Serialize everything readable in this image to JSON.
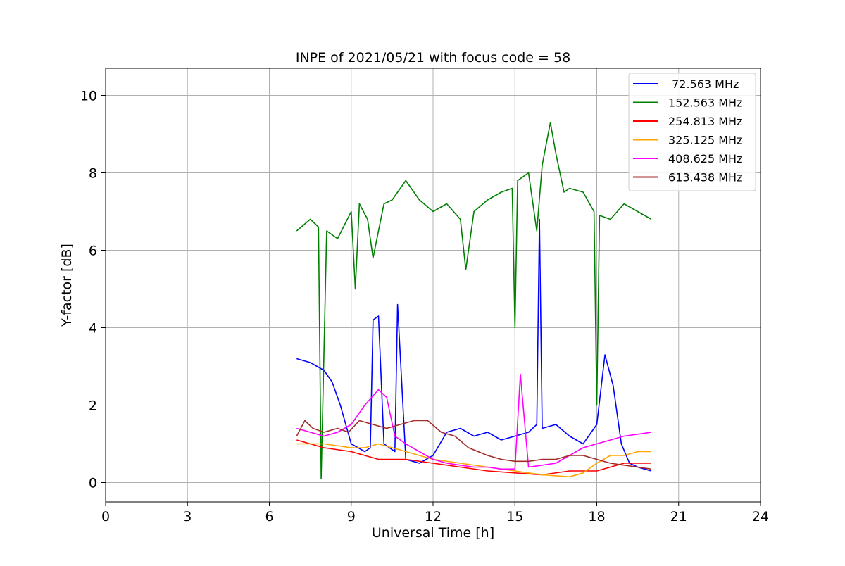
{
  "chart_data": {
    "type": "line",
    "title": "INPE of 2021/05/21 with focus code = 58",
    "xlabel": "Universal Time [h]",
    "ylabel": "Y-factor [dB]",
    "xlim": [
      0,
      24
    ],
    "ylim": [
      -0.5,
      10.7
    ],
    "xticks": [
      0,
      3,
      6,
      9,
      12,
      15,
      18,
      21,
      24
    ],
    "yticks": [
      0,
      2,
      4,
      6,
      8,
      10
    ],
    "grid": true,
    "legend_position": "top-right",
    "series": [
      {
        "name": " 72.563 MHz",
        "color": "#0000ff",
        "x": [
          7.0,
          7.5,
          8.0,
          8.3,
          8.6,
          9.0,
          9.5,
          9.7,
          9.8,
          10.0,
          10.2,
          10.6,
          10.7,
          11.0,
          11.5,
          12.0,
          12.5,
          13.0,
          13.5,
          14.0,
          14.5,
          15.0,
          15.5,
          15.8,
          15.9,
          16.0,
          16.5,
          17.0,
          17.5,
          18.0,
          18.3,
          18.6,
          18.9,
          19.2,
          19.5,
          20.0
        ],
        "y": [
          3.2,
          3.1,
          2.9,
          2.6,
          2.0,
          1.0,
          0.8,
          0.9,
          4.2,
          4.3,
          1.0,
          0.8,
          4.6,
          0.6,
          0.5,
          0.7,
          1.3,
          1.4,
          1.2,
          1.3,
          1.1,
          1.2,
          1.3,
          1.5,
          6.8,
          1.4,
          1.5,
          1.2,
          1.0,
          1.5,
          3.3,
          2.5,
          1.0,
          0.5,
          0.4,
          0.3
        ]
      },
      {
        "name": "152.563 MHz",
        "color": "#008000",
        "x": [
          7.0,
          7.5,
          7.8,
          7.9,
          8.1,
          8.5,
          9.0,
          9.15,
          9.3,
          9.6,
          9.8,
          10.0,
          10.2,
          10.5,
          11.0,
          11.5,
          12.0,
          12.5,
          13.0,
          13.2,
          13.5,
          14.0,
          14.5,
          14.9,
          15.0,
          15.1,
          15.5,
          15.8,
          16.0,
          16.3,
          16.5,
          16.8,
          17.0,
          17.5,
          17.9,
          18.0,
          18.1,
          18.5,
          19.0,
          19.5,
          20.0
        ],
        "y": [
          6.5,
          6.8,
          6.6,
          0.1,
          6.5,
          6.3,
          7.0,
          5.0,
          7.2,
          6.8,
          5.8,
          6.5,
          7.2,
          7.3,
          7.8,
          7.3,
          7.0,
          7.2,
          6.8,
          5.5,
          7.0,
          7.3,
          7.5,
          7.6,
          4.0,
          7.8,
          8.0,
          6.5,
          8.2,
          9.3,
          8.5,
          7.5,
          7.6,
          7.5,
          7.0,
          2.0,
          6.9,
          6.8,
          7.2,
          7.0,
          6.8
        ]
      },
      {
        "name": "254.813 MHz",
        "color": "#ff0000",
        "x": [
          7.0,
          8.0,
          9.0,
          9.5,
          10.0,
          11.0,
          12.0,
          13.0,
          14.0,
          15.0,
          16.0,
          17.0,
          18.0,
          18.5,
          19.0,
          19.5,
          20.0
        ],
        "y": [
          1.1,
          0.9,
          0.8,
          0.7,
          0.6,
          0.6,
          0.5,
          0.4,
          0.3,
          0.25,
          0.2,
          0.3,
          0.3,
          0.4,
          0.5,
          0.5,
          0.5
        ]
      },
      {
        "name": "325.125 MHz",
        "color": "#ffa500",
        "x": [
          7.0,
          8.0,
          9.0,
          9.5,
          10.0,
          11.0,
          12.0,
          13.0,
          14.0,
          15.0,
          16.0,
          17.0,
          17.5,
          18.0,
          18.5,
          19.0,
          19.5,
          20.0
        ],
        "y": [
          1.0,
          1.0,
          0.9,
          0.9,
          1.0,
          0.8,
          0.6,
          0.5,
          0.4,
          0.3,
          0.2,
          0.15,
          0.25,
          0.5,
          0.7,
          0.7,
          0.8,
          0.8
        ]
      },
      {
        "name": "408.625 MHz",
        "color": "#ff00ff",
        "x": [
          7.0,
          7.5,
          8.0,
          8.5,
          9.0,
          9.5,
          10.0,
          10.3,
          10.6,
          11.0,
          11.5,
          12.0,
          12.5,
          13.0,
          13.5,
          14.0,
          14.5,
          15.0,
          15.2,
          15.5,
          16.0,
          16.5,
          17.0,
          17.5,
          18.0,
          18.5,
          19.0,
          19.5,
          20.0
        ],
        "y": [
          1.4,
          1.3,
          1.2,
          1.3,
          1.5,
          2.0,
          2.4,
          2.2,
          1.2,
          1.0,
          0.8,
          0.6,
          0.5,
          0.45,
          0.4,
          0.4,
          0.35,
          0.35,
          2.8,
          0.4,
          0.45,
          0.5,
          0.7,
          0.9,
          1.0,
          1.1,
          1.2,
          1.25,
          1.3
        ]
      },
      {
        "name": "613.438 MHz",
        "color": "#a52a2a",
        "x": [
          7.0,
          7.3,
          7.6,
          8.0,
          8.5,
          8.9,
          9.3,
          9.8,
          10.3,
          10.8,
          11.3,
          11.8,
          12.3,
          12.8,
          13.3,
          14.0,
          14.5,
          15.0,
          15.5,
          16.0,
          16.5,
          17.0,
          17.5,
          18.0,
          18.5,
          19.0,
          19.5,
          20.0
        ],
        "y": [
          1.2,
          1.6,
          1.4,
          1.3,
          1.4,
          1.3,
          1.6,
          1.5,
          1.4,
          1.5,
          1.6,
          1.6,
          1.3,
          1.2,
          0.9,
          0.7,
          0.6,
          0.55,
          0.55,
          0.6,
          0.6,
          0.7,
          0.7,
          0.6,
          0.5,
          0.45,
          0.4,
          0.35
        ]
      }
    ]
  }
}
